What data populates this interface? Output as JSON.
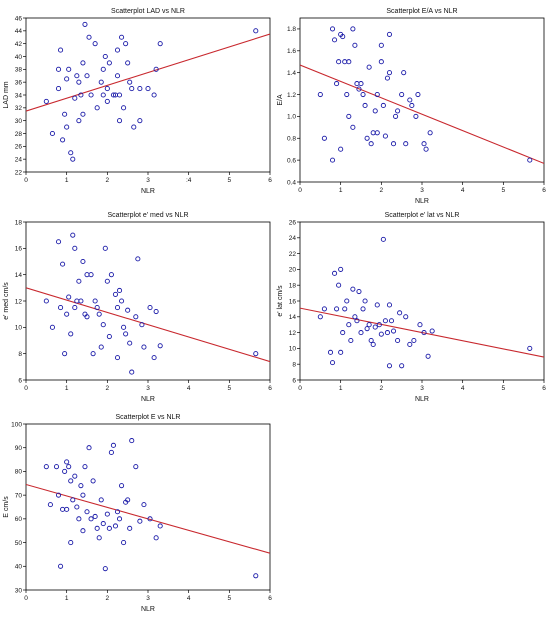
{
  "chart_data": [
    {
      "type": "scatter",
      "title": "Scatterplot LAD vs NLR",
      "xlabel": "NLR",
      "ylabel": "LAD mm",
      "xlim": [
        0,
        6
      ],
      "ylim": [
        22,
        46
      ],
      "xticks": [
        0,
        1,
        2,
        3,
        4,
        5,
        6
      ],
      "xtick_labels": [
        "0",
        "1",
        "2",
        "3",
        ":4",
        "5",
        "6"
      ],
      "yticks": [
        22,
        24,
        26,
        28,
        30,
        32,
        34,
        36,
        38,
        40,
        42,
        44,
        46
      ],
      "fit_line": [
        [
          0,
          31.5
        ],
        [
          6,
          43.5
        ]
      ],
      "points": [
        [
          0.5,
          33
        ],
        [
          0.65,
          28
        ],
        [
          0.8,
          38
        ],
        [
          0.8,
          35
        ],
        [
          0.85,
          41
        ],
        [
          0.9,
          27
        ],
        [
          0.95,
          31
        ],
        [
          1.0,
          29
        ],
        [
          1.0,
          36.5
        ],
        [
          1.05,
          38
        ],
        [
          1.1,
          25
        ],
        [
          1.15,
          24
        ],
        [
          1.2,
          33.5
        ],
        [
          1.25,
          37
        ],
        [
          1.3,
          30
        ],
        [
          1.3,
          36
        ],
        [
          1.35,
          34
        ],
        [
          1.4,
          39
        ],
        [
          1.4,
          31
        ],
        [
          1.45,
          45
        ],
        [
          1.5,
          37
        ],
        [
          1.55,
          43
        ],
        [
          1.6,
          34
        ],
        [
          1.7,
          42
        ],
        [
          1.75,
          32
        ],
        [
          1.85,
          36
        ],
        [
          1.9,
          34
        ],
        [
          1.9,
          38
        ],
        [
          1.95,
          40
        ],
        [
          2.0,
          33
        ],
        [
          2.0,
          35
        ],
        [
          2.05,
          39
        ],
        [
          2.15,
          34
        ],
        [
          2.2,
          34
        ],
        [
          2.25,
          37
        ],
        [
          2.3,
          34
        ],
        [
          2.25,
          41
        ],
        [
          2.3,
          30
        ],
        [
          2.35,
          43
        ],
        [
          2.4,
          32
        ],
        [
          2.45,
          42
        ],
        [
          2.5,
          39
        ],
        [
          2.55,
          36
        ],
        [
          2.6,
          35
        ],
        [
          2.65,
          29
        ],
        [
          2.8,
          35
        ],
        [
          2.8,
          30
        ],
        [
          3.0,
          35
        ],
        [
          3.15,
          34
        ],
        [
          3.2,
          38
        ],
        [
          3.3,
          42
        ],
        [
          5.65,
          44
        ]
      ]
    },
    {
      "type": "scatter",
      "title": "Scatterplot E/A vs NLR",
      "xlabel": "NLR",
      "ylabel": "E/A",
      "xlim": [
        0,
        6
      ],
      "ylim": [
        0.4,
        1.9
      ],
      "xticks": [
        0,
        1,
        2,
        3,
        4,
        5,
        6
      ],
      "xtick_labels": [
        "0",
        "1",
        "2",
        "3",
        "4",
        "5",
        "6"
      ],
      "yticks": [
        0.4,
        0.6,
        0.8,
        1.0,
        1.2,
        1.4,
        1.6,
        1.8
      ],
      "ytick_labels": [
        "0.4",
        "0.6",
        "0.8",
        "1.0",
        "1.2",
        "1.4",
        "1.6",
        "1.8"
      ],
      "fit_line": [
        [
          0,
          1.47
        ],
        [
          6,
          0.57
        ]
      ],
      "points": [
        [
          0.5,
          1.2
        ],
        [
          0.6,
          0.8
        ],
        [
          0.8,
          0.6
        ],
        [
          0.8,
          1.8
        ],
        [
          0.85,
          1.7
        ],
        [
          0.9,
          1.3
        ],
        [
          0.95,
          1.5
        ],
        [
          1.0,
          1.75
        ],
        [
          1.0,
          0.7
        ],
        [
          1.05,
          1.73
        ],
        [
          1.1,
          1.5
        ],
        [
          1.15,
          1.2
        ],
        [
          1.2,
          1.5
        ],
        [
          1.2,
          1.0
        ],
        [
          1.3,
          1.8
        ],
        [
          1.3,
          0.9
        ],
        [
          1.35,
          1.65
        ],
        [
          1.4,
          1.3
        ],
        [
          1.45,
          1.25
        ],
        [
          1.5,
          1.3
        ],
        [
          1.55,
          1.2
        ],
        [
          1.6,
          1.1
        ],
        [
          1.65,
          0.8
        ],
        [
          1.7,
          1.45
        ],
        [
          1.75,
          0.75
        ],
        [
          1.8,
          0.85
        ],
        [
          1.85,
          1.05
        ],
        [
          1.9,
          1.2
        ],
        [
          1.9,
          0.85
        ],
        [
          2.0,
          1.5
        ],
        [
          2.0,
          1.65
        ],
        [
          2.05,
          1.1
        ],
        [
          2.1,
          0.82
        ],
        [
          2.15,
          1.35
        ],
        [
          2.2,
          1.4
        ],
        [
          2.2,
          1.75
        ],
        [
          2.3,
          0.75
        ],
        [
          2.35,
          1.0
        ],
        [
          2.4,
          1.05
        ],
        [
          2.5,
          1.2
        ],
        [
          2.55,
          1.4
        ],
        [
          2.6,
          0.75
        ],
        [
          2.7,
          1.15
        ],
        [
          2.75,
          1.1
        ],
        [
          2.85,
          1.0
        ],
        [
          2.9,
          1.2
        ],
        [
          3.05,
          0.75
        ],
        [
          3.1,
          0.7
        ],
        [
          3.2,
          0.85
        ],
        [
          5.65,
          0.6
        ]
      ]
    },
    {
      "type": "scatter",
      "title": "Scatterplot e' med vs NLR",
      "xlabel": "NLR",
      "ylabel": "e' med cm/s",
      "xlim": [
        0,
        6
      ],
      "ylim": [
        6,
        18
      ],
      "xticks": [
        0,
        1,
        2,
        3,
        4,
        5,
        6
      ],
      "xtick_labels": [
        "0",
        "1",
        "2",
        "3",
        "4",
        "5",
        "6"
      ],
      "yticks": [
        6,
        8,
        10,
        12,
        14,
        16,
        18
      ],
      "fit_line": [
        [
          0,
          13.0
        ],
        [
          6,
          7.4
        ]
      ],
      "points": [
        [
          0.5,
          12
        ],
        [
          0.65,
          10
        ],
        [
          0.8,
          16.5
        ],
        [
          0.85,
          11.5
        ],
        [
          0.9,
          14.8
        ],
        [
          0.95,
          8
        ],
        [
          1.0,
          11
        ],
        [
          1.05,
          12.3
        ],
        [
          1.1,
          9.5
        ],
        [
          1.15,
          17
        ],
        [
          1.2,
          16
        ],
        [
          1.2,
          11.5
        ],
        [
          1.25,
          12
        ],
        [
          1.3,
          13.5
        ],
        [
          1.35,
          12
        ],
        [
          1.4,
          15
        ],
        [
          1.45,
          11
        ],
        [
          1.5,
          14
        ],
        [
          1.5,
          10.8
        ],
        [
          1.6,
          14
        ],
        [
          1.65,
          8
        ],
        [
          1.7,
          12
        ],
        [
          1.75,
          11.5
        ],
        [
          1.8,
          11
        ],
        [
          1.85,
          8.5
        ],
        [
          1.9,
          10.2
        ],
        [
          1.95,
          16
        ],
        [
          2.0,
          13.5
        ],
        [
          2.05,
          9.3
        ],
        [
          2.1,
          14
        ],
        [
          2.2,
          12.5
        ],
        [
          2.25,
          11.5
        ],
        [
          2.25,
          7.7
        ],
        [
          2.3,
          12.8
        ],
        [
          2.35,
          12
        ],
        [
          2.4,
          10
        ],
        [
          2.45,
          9.5
        ],
        [
          2.5,
          11.3
        ],
        [
          2.55,
          8.8
        ],
        [
          2.6,
          6.6
        ],
        [
          2.7,
          10.8
        ],
        [
          2.75,
          15.2
        ],
        [
          2.85,
          10.2
        ],
        [
          2.9,
          8.5
        ],
        [
          3.05,
          11.5
        ],
        [
          3.15,
          7.7
        ],
        [
          3.2,
          11.2
        ],
        [
          3.3,
          8.6
        ],
        [
          5.65,
          8.0
        ]
      ]
    },
    {
      "type": "scatter",
      "title": "Scatterplot e' lat vs NLR",
      "xlabel": "NLR",
      "ylabel": "e' lat cm/s",
      "xlim": [
        0,
        6
      ],
      "ylim": [
        6,
        26
      ],
      "xticks": [
        0,
        1,
        2,
        3,
        4,
        5,
        6
      ],
      "xtick_labels": [
        "0",
        "1",
        "2",
        "3",
        "4",
        "5",
        "6"
      ],
      "yticks": [
        6,
        8,
        10,
        12,
        14,
        16,
        18,
        20,
        22,
        24,
        26
      ],
      "fit_line": [
        [
          0,
          15.1
        ],
        [
          6,
          8.9
        ]
      ],
      "points": [
        [
          0.5,
          14
        ],
        [
          0.6,
          15
        ],
        [
          0.75,
          9.5
        ],
        [
          0.8,
          8.2
        ],
        [
          0.85,
          19.5
        ],
        [
          0.9,
          15
        ],
        [
          0.95,
          18
        ],
        [
          1.0,
          20
        ],
        [
          1.0,
          9.5
        ],
        [
          1.05,
          12
        ],
        [
          1.1,
          15
        ],
        [
          1.15,
          16
        ],
        [
          1.2,
          13
        ],
        [
          1.25,
          11
        ],
        [
          1.3,
          17.5
        ],
        [
          1.35,
          14
        ],
        [
          1.4,
          13.5
        ],
        [
          1.45,
          17.2
        ],
        [
          1.5,
          12
        ],
        [
          1.55,
          15
        ],
        [
          1.6,
          16
        ],
        [
          1.65,
          12.5
        ],
        [
          1.7,
          13
        ],
        [
          1.75,
          11
        ],
        [
          1.8,
          10.5
        ],
        [
          1.85,
          12.7
        ],
        [
          1.9,
          15.5
        ],
        [
          1.95,
          13
        ],
        [
          2.0,
          11.8
        ],
        [
          2.05,
          23.8
        ],
        [
          2.1,
          13.5
        ],
        [
          2.15,
          12
        ],
        [
          2.2,
          7.8
        ],
        [
          2.2,
          15.5
        ],
        [
          2.25,
          13.5
        ],
        [
          2.3,
          12.2
        ],
        [
          2.4,
          11
        ],
        [
          2.45,
          14.5
        ],
        [
          2.5,
          7.8
        ],
        [
          2.6,
          14
        ],
        [
          2.7,
          10.5
        ],
        [
          2.8,
          11
        ],
        [
          2.95,
          13
        ],
        [
          3.05,
          12
        ],
        [
          3.15,
          9
        ],
        [
          3.25,
          12.2
        ],
        [
          5.65,
          10
        ]
      ]
    },
    {
      "type": "scatter",
      "title": "Scatterplot E vs NLR",
      "xlabel": "NLR",
      "ylabel": "E cm/s",
      "xlim": [
        0,
        6
      ],
      "ylim": [
        30,
        100
      ],
      "xticks": [
        0,
        1,
        2,
        3,
        4,
        5,
        6
      ],
      "xtick_labels": [
        "0",
        "1",
        "2",
        "3",
        "4",
        "5",
        "6"
      ],
      "yticks": [
        30,
        40,
        50,
        60,
        70,
        80,
        90,
        100
      ],
      "fit_line": [
        [
          0,
          74.5
        ],
        [
          6,
          45.5
        ]
      ],
      "points": [
        [
          0.5,
          82
        ],
        [
          0.6,
          66
        ],
        [
          0.75,
          82
        ],
        [
          0.8,
          70
        ],
        [
          0.85,
          40
        ],
        [
          0.9,
          64
        ],
        [
          0.95,
          80
        ],
        [
          1.0,
          84
        ],
        [
          1.0,
          64
        ],
        [
          1.05,
          82
        ],
        [
          1.1,
          76
        ],
        [
          1.1,
          50
        ],
        [
          1.15,
          68
        ],
        [
          1.2,
          78
        ],
        [
          1.25,
          65
        ],
        [
          1.3,
          60
        ],
        [
          1.35,
          74
        ],
        [
          1.4,
          70
        ],
        [
          1.4,
          55
        ],
        [
          1.45,
          82
        ],
        [
          1.5,
          63
        ],
        [
          1.55,
          90
        ],
        [
          1.6,
          60
        ],
        [
          1.65,
          76
        ],
        [
          1.7,
          61
        ],
        [
          1.75,
          56
        ],
        [
          1.8,
          52
        ],
        [
          1.85,
          68
        ],
        [
          1.9,
          58
        ],
        [
          1.95,
          39
        ],
        [
          2.0,
          62
        ],
        [
          2.05,
          56
        ],
        [
          2.1,
          88
        ],
        [
          2.15,
          91
        ],
        [
          2.2,
          57
        ],
        [
          2.25,
          63
        ],
        [
          2.3,
          60
        ],
        [
          2.35,
          74
        ],
        [
          2.4,
          50
        ],
        [
          2.45,
          67
        ],
        [
          2.5,
          68
        ],
        [
          2.55,
          56
        ],
        [
          2.6,
          93
        ],
        [
          2.7,
          82
        ],
        [
          2.8,
          59
        ],
        [
          2.9,
          66
        ],
        [
          3.05,
          60
        ],
        [
          3.2,
          52
        ],
        [
          3.3,
          57
        ],
        [
          5.65,
          36
        ]
      ]
    }
  ]
}
